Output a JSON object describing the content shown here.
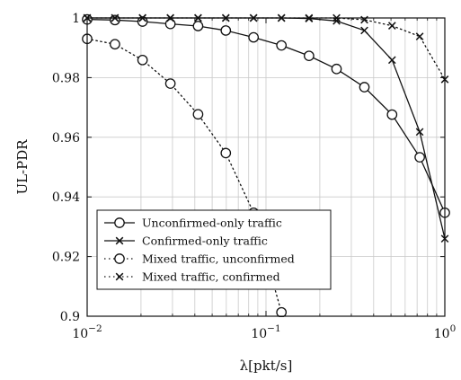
{
  "chart_data": {
    "type": "line",
    "xscale": "log",
    "xlim": [
      0.01,
      1
    ],
    "ylim": [
      0.9,
      1
    ],
    "xlabel": "λ[pkt/s]",
    "ylabel": "UL-PDR",
    "grid": true,
    "legend_position": "bottom-left",
    "x_ticks": [
      {
        "value": 0.01,
        "base": "10",
        "exp": "−2"
      },
      {
        "value": 0.1,
        "base": "10",
        "exp": "−1"
      },
      {
        "value": 1,
        "base": "10",
        "exp": "0"
      }
    ],
    "y_ticks": [
      {
        "value": 0.9,
        "label": "0.9"
      },
      {
        "value": 0.92,
        "label": "0.92"
      },
      {
        "value": 0.94,
        "label": "0.94"
      },
      {
        "value": 0.96,
        "label": "0.96"
      },
      {
        "value": 0.98,
        "label": "0.98"
      },
      {
        "value": 1.0,
        "label": "1"
      }
    ],
    "series": [
      {
        "name": "Unconfirmed-only traffic",
        "line_style": "solid",
        "marker": "circle",
        "x": [
          0.01,
          0.0143,
          0.0204,
          0.0292,
          0.0417,
          0.0596,
          0.0852,
          0.122,
          0.174,
          0.248,
          0.355,
          0.507,
          0.724,
          1.0
        ],
        "y": [
          0.9995,
          0.9993,
          0.9988,
          0.998,
          0.9973,
          0.9958,
          0.9935,
          0.9908,
          0.9873,
          0.9829,
          0.9768,
          0.9676,
          0.9533,
          0.9347
        ]
      },
      {
        "name": "Confirmed-only traffic",
        "line_style": "solid",
        "marker": "x",
        "x": [
          0.01,
          0.0143,
          0.0204,
          0.0292,
          0.0417,
          0.0596,
          0.0852,
          0.122,
          0.174,
          0.248,
          0.355,
          0.507,
          0.724,
          1.0
        ],
        "y": [
          1.0,
          1.0,
          1.0,
          1.0,
          1.0,
          1.0,
          1.0,
          1.0,
          0.9998,
          0.999,
          0.9958,
          0.9859,
          0.9618,
          0.926
        ]
      },
      {
        "name": "Mixed traffic, unconfirmed",
        "line_style": "dotted",
        "marker": "circle",
        "x": [
          0.01,
          0.0143,
          0.0204,
          0.0292,
          0.0417,
          0.0596,
          0.0852,
          0.122
        ],
        "y": [
          0.993,
          0.9912,
          0.9859,
          0.978,
          0.9677,
          0.9547,
          0.9347,
          0.9013
        ]
      },
      {
        "name": "Mixed traffic, confirmed",
        "line_style": "dotted",
        "marker": "x",
        "x": [
          0.01,
          0.0143,
          0.0204,
          0.0292,
          0.0417,
          0.0596,
          0.0852,
          0.122,
          0.174,
          0.248,
          0.355,
          0.507,
          0.724,
          1.0
        ],
        "y": [
          1.0,
          1.0,
          1.0,
          1.0,
          1.0,
          1.0,
          1.0,
          1.0,
          1.0,
          1.0,
          0.9994,
          0.9974,
          0.9938,
          0.9794
        ]
      }
    ]
  }
}
